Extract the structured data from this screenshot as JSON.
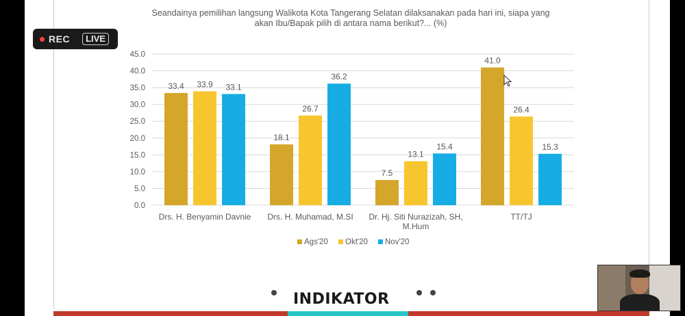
{
  "overlay": {
    "rec_label": "REC",
    "live_label": "LIVE"
  },
  "branding": {
    "logo_text": "INDIKATOR"
  },
  "colors": {
    "Ags20": "#D4A62A",
    "Okt20": "#F7C62F",
    "Nov20": "#17ADE4",
    "grid": "#d9d9d9",
    "text": "#595959"
  },
  "chart_data": {
    "type": "bar",
    "title_line1": "Seandainya pemilihan langsung Walikota Kota Tangerang Selatan dilaksanakan pada hari ini, siapa yang",
    "title_line2": "akan Ibu/Bapak pilih di antara nama berikut?... (%)",
    "categories": [
      [
        "Drs. H. Benyamin Davnie"
      ],
      [
        "Drs. H. Muhamad, M.SI"
      ],
      [
        "Dr. Hj. Siti Nurazizah, SH,",
        "M.Hum"
      ],
      [
        "TT/TJ"
      ]
    ],
    "series": [
      {
        "name": "Ags'20",
        "values": [
          33.4,
          18.1,
          7.5,
          41.0
        ]
      },
      {
        "name": "Okt'20",
        "values": [
          33.9,
          26.7,
          13.1,
          26.4
        ]
      },
      {
        "name": "Nov'20",
        "values": [
          33.1,
          36.2,
          15.4,
          15.3
        ]
      }
    ],
    "ylim": [
      0,
      45
    ],
    "yticks": [
      "0.0",
      "5.0",
      "10.0",
      "15.0",
      "20.0",
      "25.0",
      "30.0",
      "35.0",
      "40.0",
      "45.0"
    ],
    "grid": true,
    "legend_position": "bottom"
  }
}
